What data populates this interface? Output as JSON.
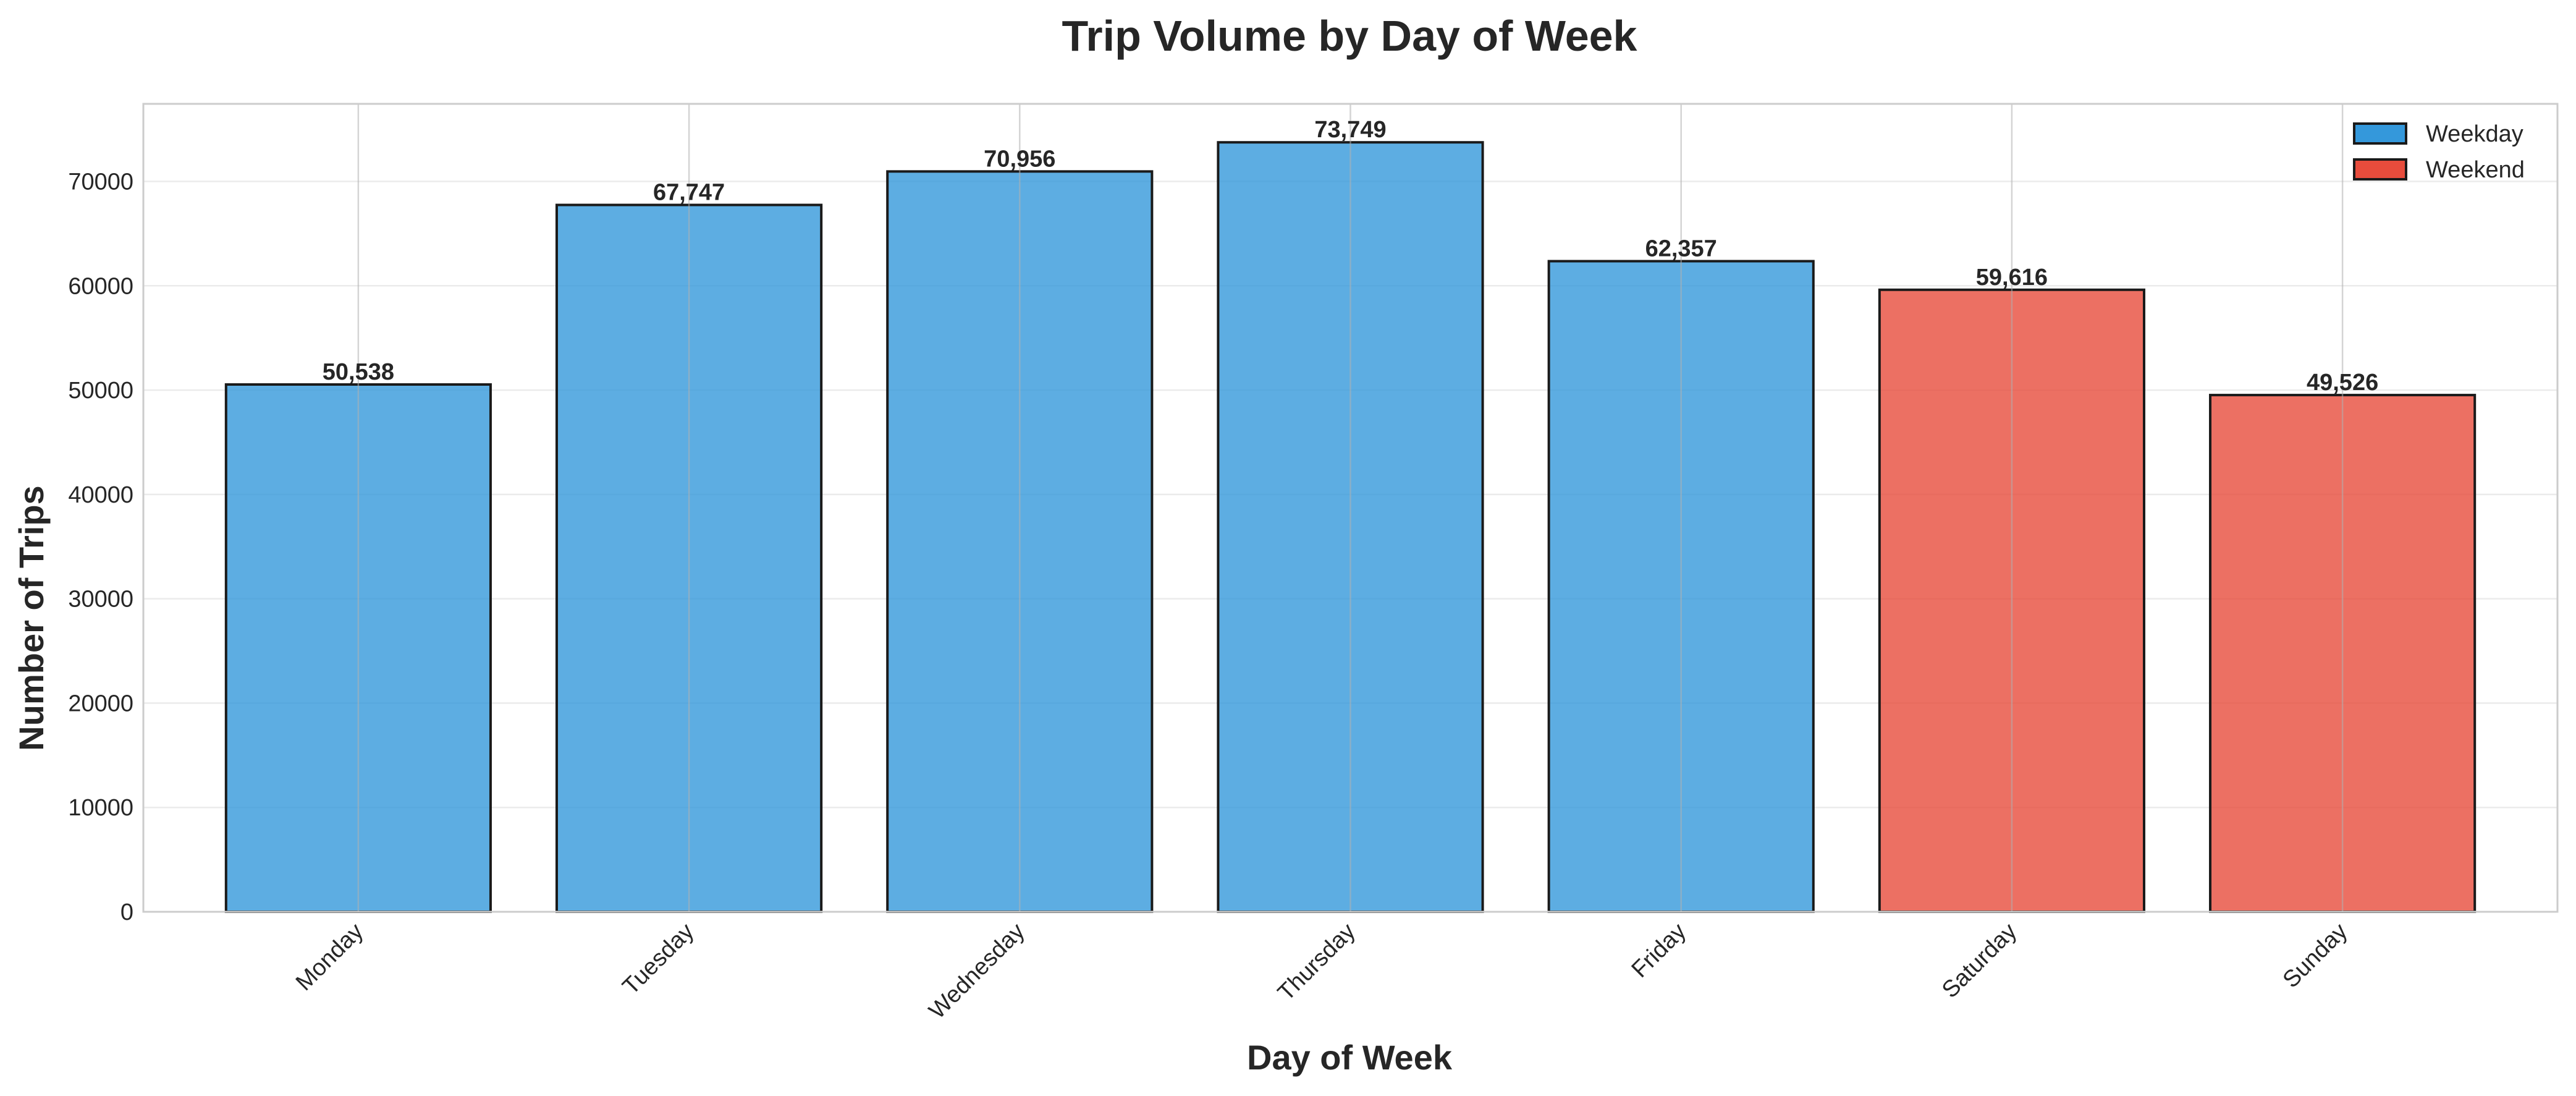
{
  "chart_data": {
    "type": "bar",
    "title": "Trip Volume by Day of Week",
    "xlabel": "Day of Week",
    "ylabel": "Number of Trips",
    "categories": [
      "Monday",
      "Tuesday",
      "Wednesday",
      "Thursday",
      "Friday",
      "Saturday",
      "Sunday"
    ],
    "values": [
      50538,
      67747,
      70956,
      73749,
      62357,
      59616,
      49526
    ],
    "value_labels": [
      "50,538",
      "67,747",
      "70,956",
      "73,749",
      "62,357",
      "59,616",
      "49,526"
    ],
    "groups": [
      "Weekday",
      "Weekday",
      "Weekday",
      "Weekday",
      "Weekday",
      "Weekend",
      "Weekend"
    ],
    "ylim": [
      0,
      77436
    ],
    "yticks": [
      0,
      10000,
      20000,
      30000,
      40000,
      50000,
      60000,
      70000
    ],
    "ytick_labels": [
      "0",
      "10000",
      "20000",
      "30000",
      "40000",
      "50000",
      "60000",
      "70000"
    ],
    "grid": true,
    "legend": {
      "placement": "top-right",
      "entries": [
        {
          "label": "Weekday",
          "color": "#3498db"
        },
        {
          "label": "Weekend",
          "color": "#e74c3c"
        }
      ]
    },
    "colors": {
      "Weekday": "#3498db",
      "Weekend": "#e74c3c"
    }
  }
}
